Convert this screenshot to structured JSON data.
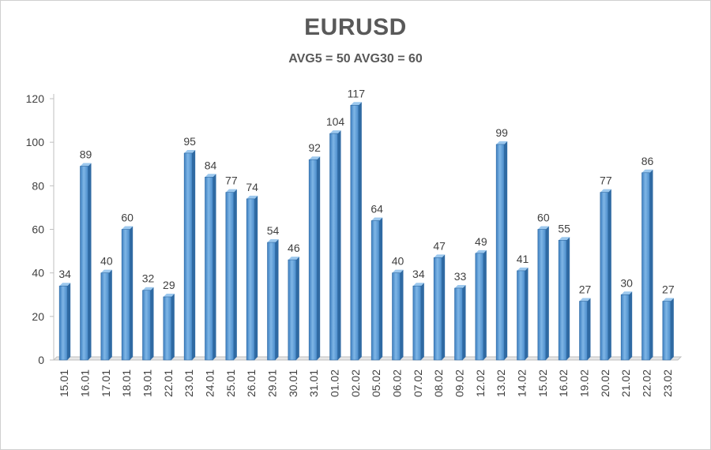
{
  "chart_data": {
    "type": "bar",
    "title": "EURUSD",
    "subtitle": "AVG5 = 50 AVG30 = 60",
    "xlabel": "",
    "ylabel": "",
    "ylim": [
      0,
      120
    ],
    "yticks": [
      0,
      20,
      40,
      60,
      80,
      100,
      120
    ],
    "grid": false,
    "bar_color": "#5b9bd5",
    "categories": [
      "15.01",
      "16.01",
      "17.01",
      "18.01",
      "19.01",
      "22.01",
      "23.01",
      "24.01",
      "25.01",
      "26.01",
      "29.01",
      "30.01",
      "31.01",
      "01.02",
      "02.02",
      "05.02",
      "06.02",
      "07.02",
      "08.02",
      "09.02",
      "12.02",
      "13.02",
      "14.02",
      "15.02",
      "16.02",
      "19.02",
      "20.02",
      "21.02",
      "22.02",
      "23.02"
    ],
    "values": [
      34,
      89,
      40,
      60,
      32,
      29,
      95,
      84,
      77,
      74,
      54,
      46,
      92,
      104,
      117,
      64,
      40,
      34,
      47,
      33,
      49,
      99,
      41,
      60,
      55,
      27,
      77,
      30,
      86,
      27
    ]
  }
}
